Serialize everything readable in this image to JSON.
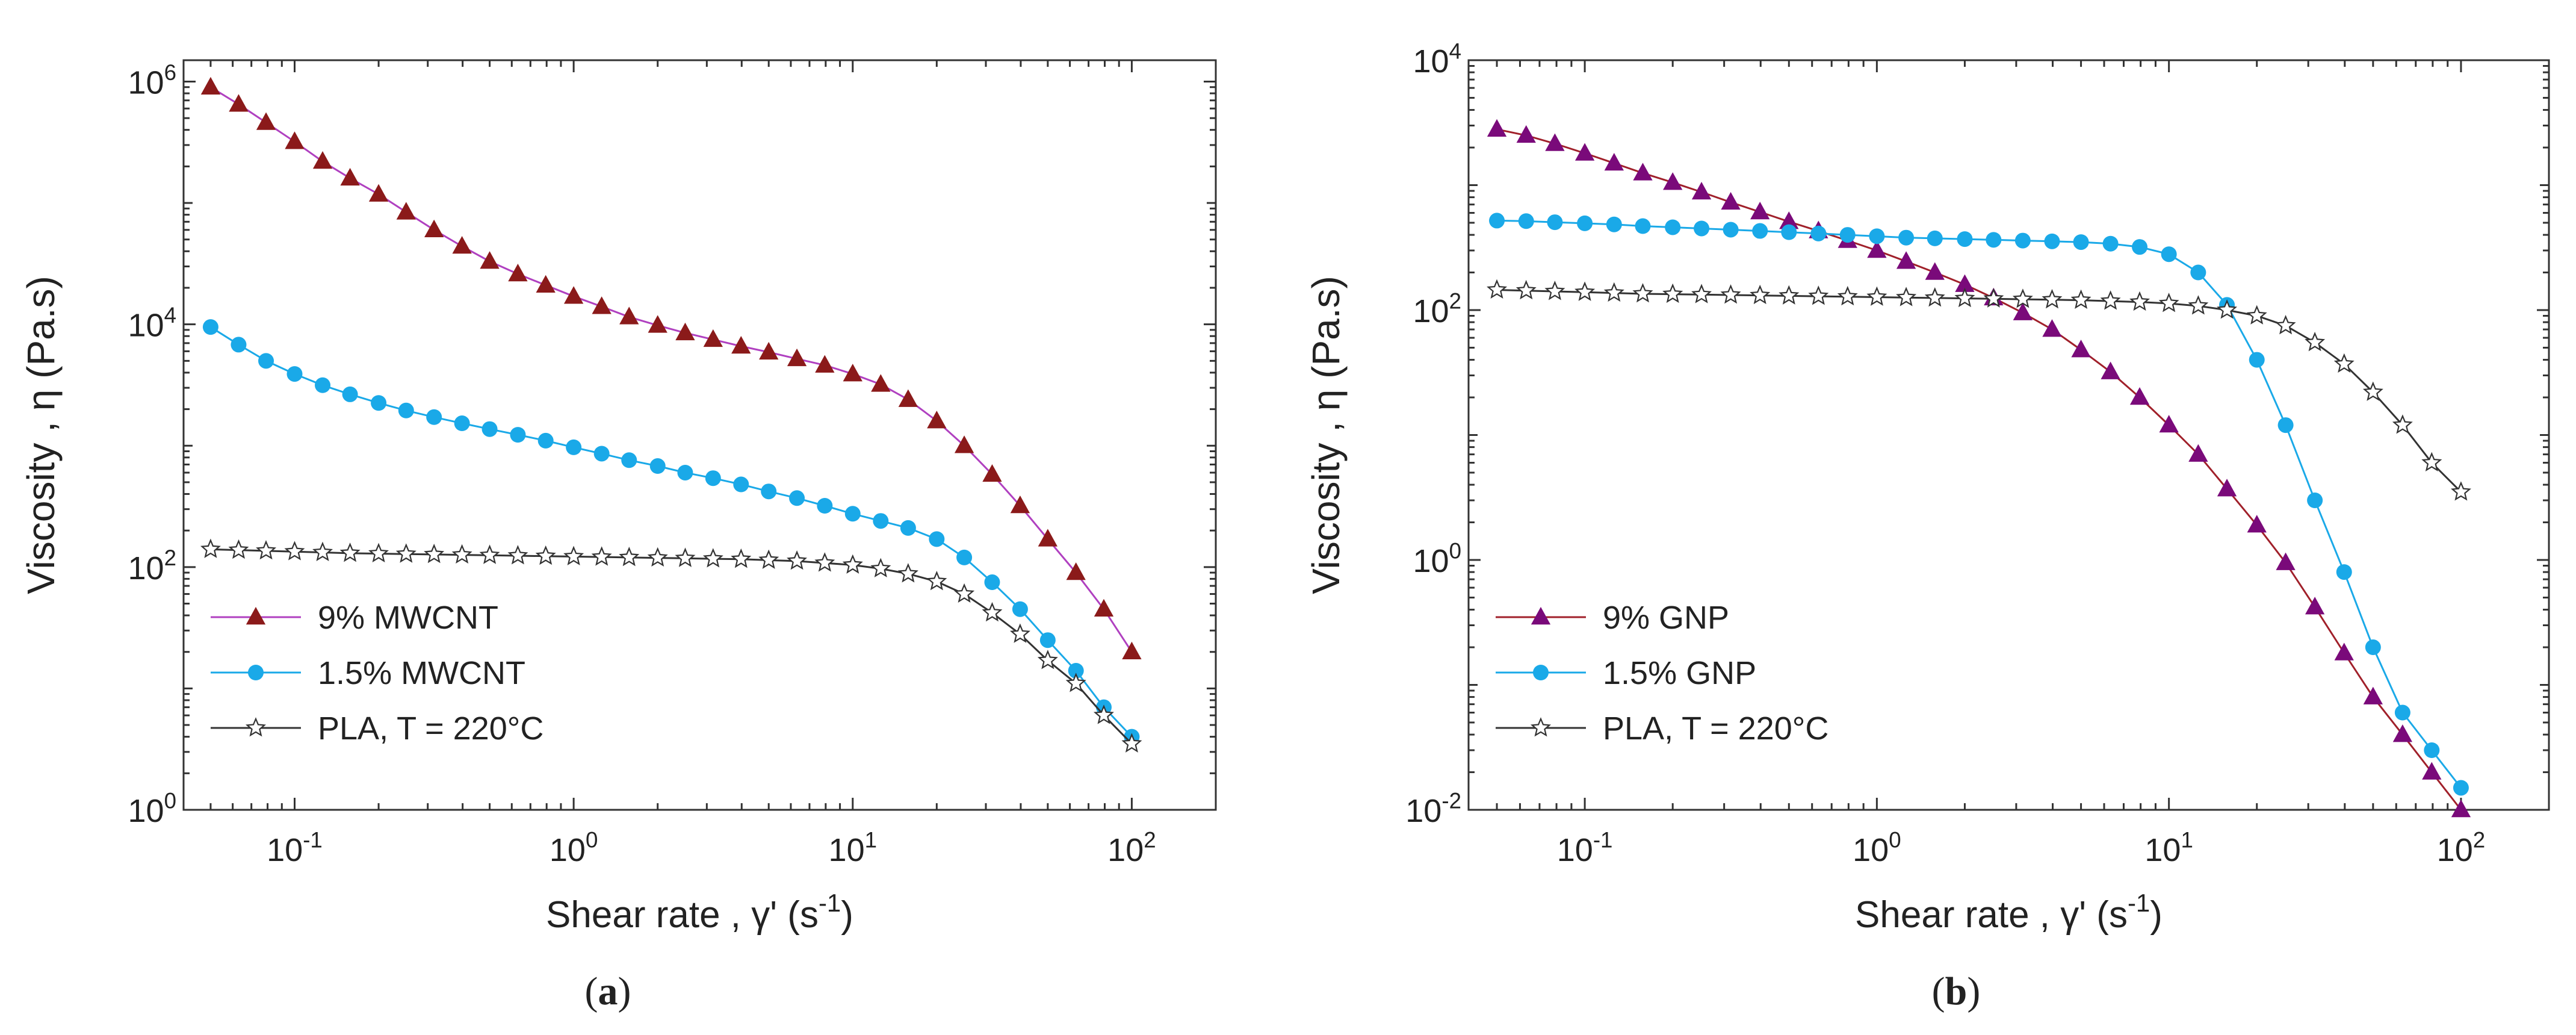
{
  "chart_data": [
    {
      "type": "line",
      "panel_label": "a",
      "xlabel": "Shear rate , γ' (s",
      "xlabel_exp": "-1",
      "xlabel_end": ")",
      "ylabel": "Viscosity , η (Pa.s)",
      "xscale": "log",
      "yscale": "log",
      "xlim": [
        0.04,
        200
      ],
      "ylim": [
        1,
        1500000
      ],
      "xticks": [
        0.1,
        1,
        10,
        100
      ],
      "xtick_exponents": [
        "-1",
        "0",
        "1",
        "2"
      ],
      "yticks": [
        1,
        100,
        10000,
        1000000
      ],
      "ytick_exponents": [
        "0",
        "2",
        "4",
        "6"
      ],
      "tick_base": "10",
      "legend_position": "bottom-left",
      "series": [
        {
          "name": "9% MWCNT",
          "marker": "triangle",
          "color": "#8b1a1a",
          "line_color": "#b040c0",
          "x": [
            0.05,
            0.063,
            0.079,
            0.1,
            0.126,
            0.158,
            0.2,
            0.251,
            0.316,
            0.398,
            0.5,
            0.631,
            0.794,
            1,
            1.26,
            1.58,
            2,
            2.51,
            3.16,
            3.98,
            5,
            6.31,
            7.94,
            10,
            12.6,
            15.8,
            20,
            25.1,
            31.6,
            39.8,
            50,
            63.1,
            79.4,
            100
          ],
          "y": [
            900000,
            650000,
            460000,
            320000,
            220000,
            160000,
            118000,
            84000,
            60000,
            44000,
            33000,
            26000,
            21000,
            17000,
            14000,
            11500,
            9800,
            8500,
            7500,
            6600,
            5900,
            5200,
            4600,
            3900,
            3200,
            2400,
            1600,
            1000,
            580,
            320,
            170,
            90,
            45,
            20
          ]
        },
        {
          "name": "1.5% MWCNT",
          "marker": "circle",
          "color": "#1aa9e8",
          "line_color": "#1aa9e8",
          "x": [
            0.05,
            0.063,
            0.079,
            0.1,
            0.126,
            0.158,
            0.2,
            0.251,
            0.316,
            0.398,
            0.5,
            0.631,
            0.794,
            1,
            1.26,
            1.58,
            2,
            2.51,
            3.16,
            3.98,
            5,
            6.31,
            7.94,
            10,
            12.6,
            15.8,
            20,
            25.1,
            31.6,
            39.8,
            50,
            63.1,
            79.4,
            100
          ],
          "y": [
            9500,
            6800,
            5000,
            3900,
            3150,
            2650,
            2250,
            1950,
            1720,
            1530,
            1370,
            1230,
            1100,
            970,
            860,
            760,
            680,
            600,
            540,
            480,
            420,
            370,
            320,
            275,
            240,
            210,
            170,
            120,
            75,
            45,
            25,
            14,
            7,
            4
          ]
        },
        {
          "name": "PLA, T = 220°C",
          "marker": "star",
          "color": "#333333",
          "line_color": "#333333",
          "x": [
            0.05,
            0.063,
            0.079,
            0.1,
            0.126,
            0.158,
            0.2,
            0.251,
            0.316,
            0.398,
            0.5,
            0.631,
            0.794,
            1,
            1.26,
            1.58,
            2,
            2.51,
            3.16,
            3.98,
            5,
            6.31,
            7.94,
            10,
            12.6,
            15.8,
            20,
            25.1,
            31.6,
            39.8,
            50,
            63.1,
            79.4,
            100
          ],
          "y": [
            140,
            138,
            136,
            134,
            132,
            130,
            129,
            128,
            127,
            126,
            125,
            124,
            123,
            122,
            121,
            120,
            119,
            118,
            117,
            116,
            114,
            112,
            108,
            104,
            97,
            88,
            76,
            60,
            42,
            28,
            17,
            11,
            6,
            3.5
          ]
        }
      ]
    },
    {
      "type": "line",
      "panel_label": "b",
      "xlabel": "Shear rate , γ' (s",
      "xlabel_exp": "-1",
      "xlabel_end": ")",
      "ylabel": "Viscosity , η (Pa.s)",
      "xscale": "log",
      "yscale": "log",
      "xlim": [
        0.04,
        200
      ],
      "ylim": [
        0.01,
        10000
      ],
      "xticks": [
        0.1,
        1,
        10,
        100
      ],
      "xtick_exponents": [
        "-1",
        "0",
        "1",
        "2"
      ],
      "yticks": [
        0.01,
        1,
        100,
        10000
      ],
      "ytick_exponents": [
        "-2",
        "0",
        "2",
        "4"
      ],
      "tick_base": "10",
      "legend_position": "bottom-left",
      "series": [
        {
          "name": "9% GNP",
          "marker": "triangle",
          "color": "#7a0a7a",
          "line_color": "#a0202a",
          "x": [
            0.05,
            0.063,
            0.079,
            0.1,
            0.126,
            0.158,
            0.2,
            0.251,
            0.316,
            0.398,
            0.5,
            0.631,
            0.794,
            1,
            1.26,
            1.58,
            2,
            2.51,
            3.16,
            3.98,
            5,
            6.31,
            7.94,
            10,
            12.6,
            15.8,
            20,
            25.1,
            31.6,
            39.8,
            50,
            63.1,
            79.4,
            100
          ],
          "y": [
            2800,
            2500,
            2150,
            1800,
            1500,
            1250,
            1050,
            880,
            730,
            610,
            510,
            430,
            360,
            300,
            245,
            200,
            160,
            125,
            95,
            70,
            48,
            32,
            20,
            12,
            7,
            3.7,
            1.9,
            0.95,
            0.42,
            0.18,
            0.08,
            0.04,
            0.02,
            0.01
          ]
        },
        {
          "name": "1.5% GNP",
          "marker": "circle",
          "color": "#1aa9e8",
          "line_color": "#1aa9e8",
          "x": [
            0.05,
            0.063,
            0.079,
            0.1,
            0.126,
            0.158,
            0.2,
            0.251,
            0.316,
            0.398,
            0.5,
            0.631,
            0.794,
            1,
            1.26,
            1.58,
            2,
            2.51,
            3.16,
            3.98,
            5,
            6.31,
            7.94,
            10,
            12.6,
            15.8,
            20,
            25.1,
            31.6,
            39.8,
            50,
            63.1,
            79.4,
            100
          ],
          "y": [
            520,
            515,
            505,
            495,
            485,
            470,
            460,
            450,
            440,
            430,
            420,
            410,
            400,
            390,
            380,
            375,
            370,
            365,
            360,
            355,
            350,
            340,
            320,
            280,
            200,
            110,
            40,
            12,
            3,
            0.8,
            0.2,
            0.06,
            0.03,
            0.015
          ]
        },
        {
          "name": "PLA, T = 220°C",
          "marker": "star",
          "color": "#333333",
          "line_color": "#333333",
          "x": [
            0.05,
            0.063,
            0.079,
            0.1,
            0.126,
            0.158,
            0.2,
            0.251,
            0.316,
            0.398,
            0.5,
            0.631,
            0.794,
            1,
            1.26,
            1.58,
            2,
            2.51,
            3.16,
            3.98,
            5,
            6.31,
            7.94,
            10,
            12.6,
            15.8,
            20,
            25.1,
            31.6,
            39.8,
            50,
            63.1,
            79.4,
            100
          ],
          "y": [
            145,
            143,
            141,
            139,
            137,
            135,
            134,
            133,
            132,
            131,
            130,
            129,
            128,
            127,
            126,
            125,
            124,
            123,
            122,
            121,
            120,
            118,
            116,
            113,
            108,
            100,
            90,
            75,
            55,
            37,
            22,
            12,
            6,
            3.5
          ]
        }
      ]
    }
  ]
}
